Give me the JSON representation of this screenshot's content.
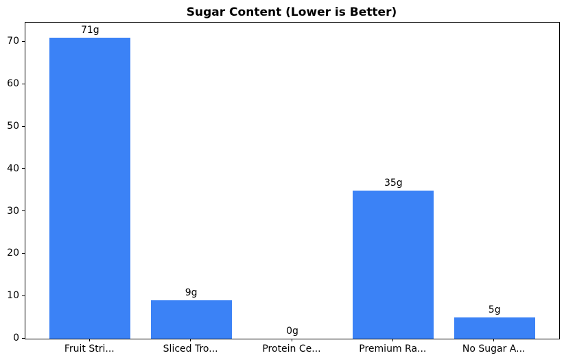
{
  "chart_data": {
    "type": "bar",
    "title": "Sugar Content (Lower is Better)",
    "categories": [
      "Fruit Stri...",
      "Sliced Tro...",
      "Protein Ce...",
      "Premium Ra...",
      "No Sugar A..."
    ],
    "values": [
      71,
      9,
      0,
      35,
      5
    ],
    "bar_labels": [
      "71g",
      "9g",
      "0g",
      "35g",
      "5g"
    ],
    "xlabel": "",
    "ylabel": "",
    "ylim": [
      0,
      74.6
    ],
    "yticks": [
      0,
      10,
      20,
      30,
      40,
      50,
      60,
      70
    ],
    "bar_color": "#3b82f6",
    "axis_color": "#000000",
    "grid": false,
    "legend": "none",
    "bar_width_fraction": 0.8
  }
}
